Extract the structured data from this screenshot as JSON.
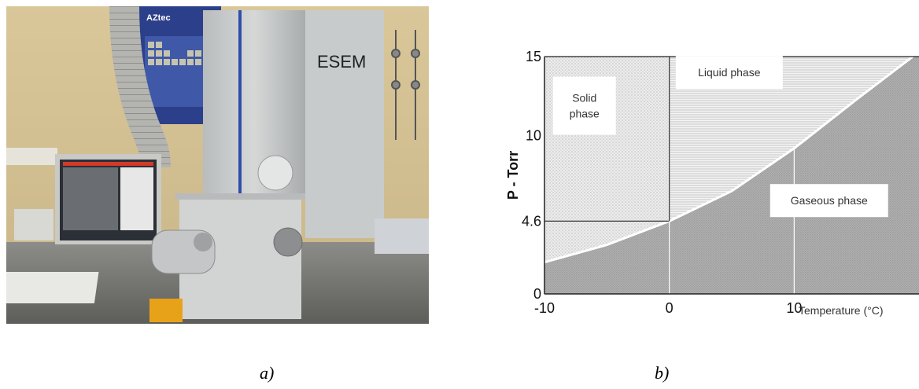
{
  "photo": {
    "instrument_label": "ESEM",
    "poster_label": "AZtec"
  },
  "captions": {
    "a": "a)",
    "b": "b)"
  },
  "chart_data": {
    "type": "area",
    "xlabel": "Temperature (°C)",
    "ylabel": "P - Torr",
    "x_ticks": [
      "-10",
      "0",
      "10"
    ],
    "y_ticks": [
      "0",
      "4.6",
      "10",
      "15"
    ],
    "xlim": [
      -10,
      20
    ],
    "ylim": [
      0,
      15
    ],
    "triple_point": {
      "T": 0,
      "P": 4.6
    },
    "vapor_pressure_curve": [
      {
        "T": -10,
        "P": 2.0
      },
      {
        "T": -5,
        "P": 3.1
      },
      {
        "T": 0,
        "P": 4.6
      },
      {
        "T": 5,
        "P": 6.5
      },
      {
        "T": 10,
        "P": 9.2
      },
      {
        "T": 15,
        "P": 12.3
      },
      {
        "T": 19.5,
        "P": 15
      }
    ],
    "reference_lines": [
      {
        "T": 0
      },
      {
        "T": 10
      }
    ],
    "regions": [
      {
        "name": "Solid phase",
        "lines": [
          "Solid",
          "phase"
        ]
      },
      {
        "name": "Liquid phase",
        "lines": [
          "Liquid phase"
        ]
      },
      {
        "name": "Gaseous phase",
        "lines": [
          "Gaseous phase"
        ]
      }
    ],
    "grid": false,
    "legend": "none"
  }
}
